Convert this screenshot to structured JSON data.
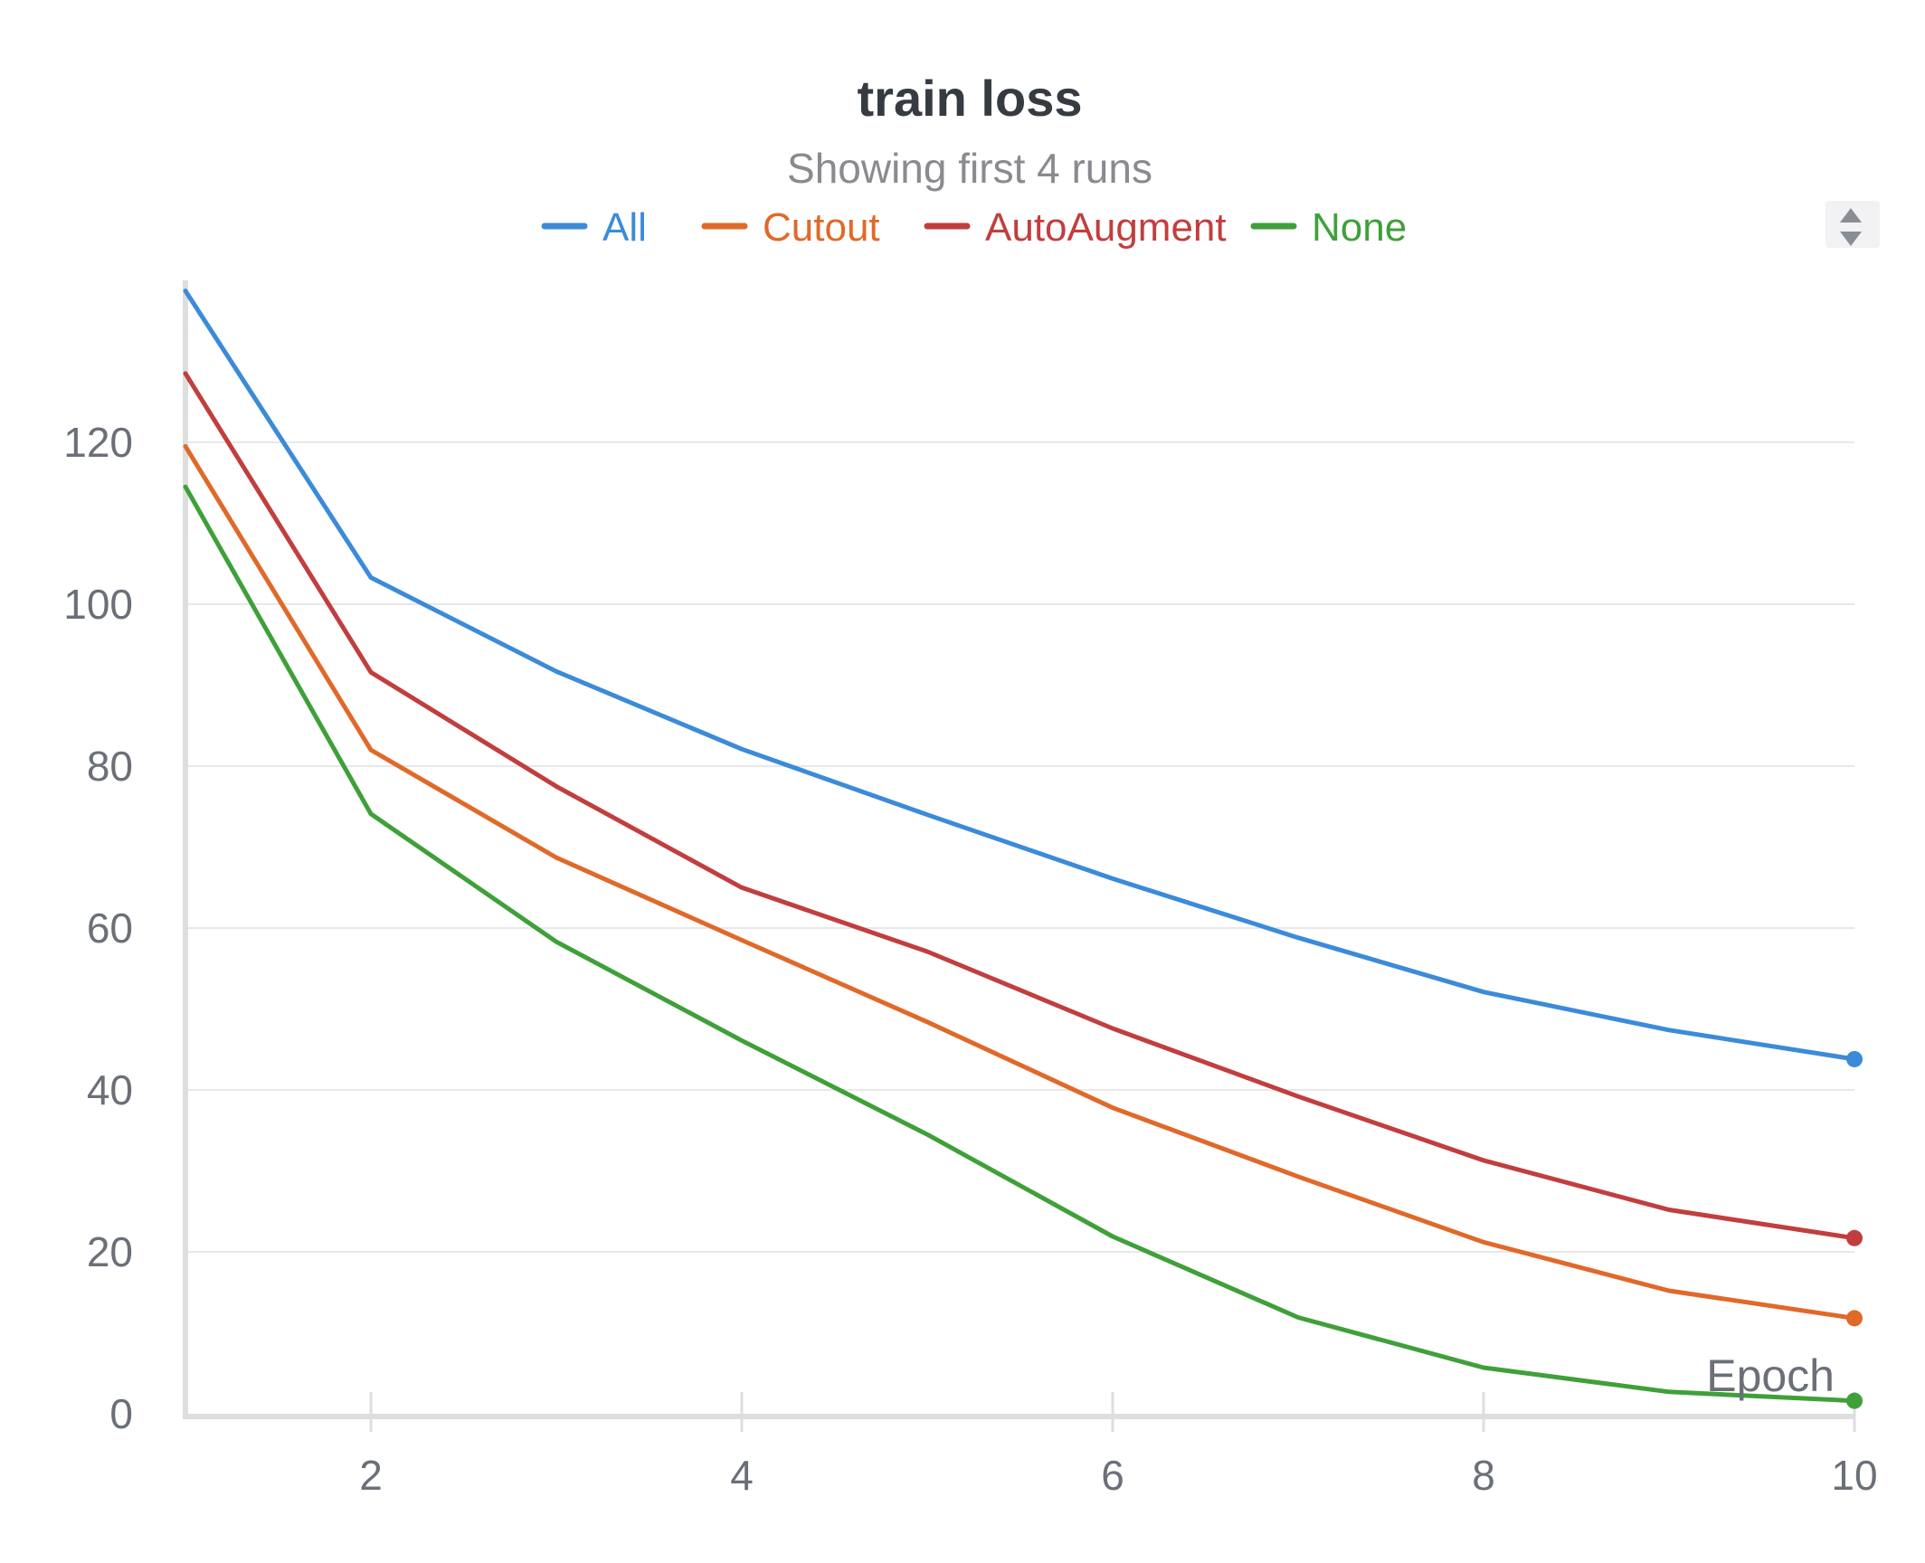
{
  "chart_data": {
    "type": "line",
    "title": "train loss",
    "subtitle": "Showing first 4 runs",
    "xlabel": "Epoch",
    "ylabel": "",
    "x": [
      1,
      2,
      3,
      4,
      5,
      6,
      7,
      8,
      9,
      10
    ],
    "xlim": [
      1,
      10
    ],
    "ylim": [
      0,
      140
    ],
    "xticks": [
      2,
      4,
      6,
      8,
      10
    ],
    "yticks": [
      0,
      20,
      40,
      60,
      80,
      100,
      120
    ],
    "grid": true,
    "legend_position": "top",
    "series": [
      {
        "name": "All",
        "color": "#3b8bd9",
        "values": [
          138.7,
          103.3,
          91.7,
          82.1,
          74.0,
          66.1,
          58.8,
          52.1,
          47.4,
          43.8
        ]
      },
      {
        "name": "Cutout",
        "color": "#e0692a",
        "values": [
          119.5,
          82.0,
          68.7,
          58.5,
          48.4,
          37.8,
          29.3,
          21.2,
          15.2,
          11.8
        ]
      },
      {
        "name": "AutoAugment",
        "color": "#c23e3e",
        "values": [
          128.5,
          91.6,
          77.5,
          65.0,
          57.1,
          47.6,
          39.2,
          31.3,
          25.2,
          21.7
        ]
      },
      {
        "name": "None",
        "color": "#3fa03a",
        "values": [
          114.5,
          74.1,
          58.3,
          46.1,
          34.5,
          21.9,
          11.9,
          5.7,
          2.7,
          1.6
        ]
      }
    ]
  },
  "colors": {
    "title": "#363a41",
    "subtitle": "#8a8a8f",
    "tick": "#6b6f78",
    "grid": "#e8e8ea",
    "axis": "#dedede"
  },
  "controls": {
    "legend_scroll_icon": "up-down-arrows-icon"
  }
}
